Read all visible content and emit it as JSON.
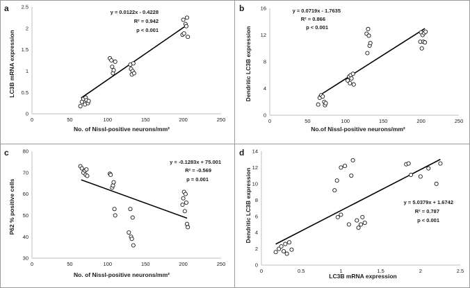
{
  "figure": {
    "panels": [
      {
        "id": "a",
        "letter": "a",
        "chart_data": {
          "type": "scatter",
          "xlabel": "No. of Nissl-positive neurons/mm²",
          "ylabel": "LC3B mRNA expression",
          "xlim": [
            0,
            250
          ],
          "ylim": [
            0,
            2.5
          ],
          "xticks": [
            0,
            50,
            100,
            150,
            200,
            250
          ],
          "yticks": [
            0,
            0.5,
            1,
            1.5,
            2,
            2.5
          ],
          "ytick_labels": [
            "0",
            "0.5",
            "1",
            "1.5",
            "2",
            "2.5"
          ],
          "annotation": [
            "y = 0.0122x - 0.4228",
            "R² = 0.942",
            "p < 0.001"
          ],
          "trendline": {
            "slope": 0.0122,
            "intercept": -0.4228,
            "x_range": [
              65,
              205
            ]
          },
          "points": [
            [
              64,
              0.18
            ],
            [
              66,
              0.28
            ],
            [
              68,
              0.35
            ],
            [
              70,
              0.22
            ],
            [
              71,
              0.38
            ],
            [
              72,
              0.32
            ],
            [
              74,
              0.25
            ],
            [
              75,
              0.3
            ],
            [
              103,
              1.3
            ],
            [
              105,
              1.25
            ],
            [
              106,
              1.1
            ],
            [
              107,
              0.95
            ],
            [
              108,
              1.02
            ],
            [
              110,
              1.22
            ],
            [
              130,
              1.15
            ],
            [
              131,
              1.05
            ],
            [
              132,
              0.92
            ],
            [
              133,
              1.0
            ],
            [
              134,
              1.18
            ],
            [
              135,
              0.95
            ],
            [
              199,
              1.85
            ],
            [
              200,
              2.2
            ],
            [
              201,
              1.88
            ],
            [
              203,
              2.1
            ],
            [
              204,
              2.05
            ],
            [
              205,
              2.25
            ],
            [
              206,
              1.8
            ]
          ]
        }
      },
      {
        "id": "b",
        "letter": "b",
        "chart_data": {
          "type": "scatter",
          "xlabel": "No.of Nissl-positive neurons/mm²",
          "ylabel": "Dendritic LC3B expression",
          "xlim": [
            0,
            250
          ],
          "ylim": [
            0,
            16
          ],
          "xticks": [
            0,
            50,
            100,
            150,
            200,
            250
          ],
          "yticks": [
            0,
            4,
            8,
            12,
            16
          ],
          "ytick_labels": [
            "0",
            "4",
            "8",
            "12",
            "16"
          ],
          "annotation": [
            "y = 0.0719x - 1.7635",
            "R² = 0.866",
            "p < 0.001"
          ],
          "trendline": {
            "slope": 0.0719,
            "intercept": -1.7635,
            "x_range": [
              65,
              205
            ]
          },
          "points": [
            [
              64,
              1.6
            ],
            [
              66,
              2.6
            ],
            [
              68,
              3.0
            ],
            [
              70,
              2.8
            ],
            [
              72,
              2.0
            ],
            [
              73,
              1.5
            ],
            [
              74,
              1.8
            ],
            [
              103,
              5.2
            ],
            [
              105,
              5.8
            ],
            [
              106,
              4.8
            ],
            [
              107,
              6.0
            ],
            [
              108,
              5.5
            ],
            [
              110,
              6.2
            ],
            [
              111,
              4.6
            ],
            [
              128,
              12.2
            ],
            [
              129,
              9.3
            ],
            [
              130,
              12.9
            ],
            [
              131,
              11.9
            ],
            [
              132,
              10.4
            ],
            [
              133,
              10.8
            ],
            [
              199,
              11.0
            ],
            [
              200,
              12.4
            ],
            [
              201,
              10.0
            ],
            [
              202,
              12.0
            ],
            [
              203,
              11.0
            ],
            [
              204,
              12.3
            ],
            [
              205,
              10.9
            ],
            [
              206,
              12.5
            ]
          ]
        }
      },
      {
        "id": "c",
        "letter": "c",
        "chart_data": {
          "type": "scatter",
          "xlabel": "No. of Nissl-positive neurons/mm²",
          "ylabel": "P62 % positive cells",
          "xlim": [
            0,
            250
          ],
          "ylim": [
            30,
            80
          ],
          "xticks": [
            0,
            50,
            100,
            150,
            200,
            250
          ],
          "yticks": [
            30,
            40,
            50,
            60,
            70,
            80
          ],
          "ytick_labels": [
            "30",
            "40",
            "50",
            "60",
            "70",
            "80"
          ],
          "annotation": [
            "y = -0.1283x + 75.001",
            "R² = -0.569",
            "p = 0.001"
          ],
          "trendline": {
            "slope": -0.1283,
            "intercept": 75.001,
            "x_range": [
              65,
              205
            ]
          },
          "points": [
            [
              64,
              73
            ],
            [
              66,
              72
            ],
            [
              68,
              70
            ],
            [
              70,
              71
            ],
            [
              71,
              69
            ],
            [
              72,
              71.5
            ],
            [
              73,
              68.5
            ],
            [
              103,
              69.5
            ],
            [
              104,
              69
            ],
            [
              106,
              63
            ],
            [
              107,
              64
            ],
            [
              108,
              65.5
            ],
            [
              109,
              53
            ],
            [
              110,
              50
            ],
            [
              128,
              42
            ],
            [
              130,
              53
            ],
            [
              131,
              40
            ],
            [
              132,
              39
            ],
            [
              133,
              49
            ],
            [
              134,
              36
            ],
            [
              199,
              55
            ],
            [
              200,
              58
            ],
            [
              201,
              61
            ],
            [
              202,
              52
            ],
            [
              203,
              60
            ],
            [
              204,
              56
            ],
            [
              205,
              46
            ],
            [
              206,
              44.5
            ]
          ]
        }
      },
      {
        "id": "d",
        "letter": "d",
        "chart_data": {
          "type": "scatter",
          "xlabel": "LC3B mRNA expression",
          "ylabel": "Dendritic LC3B expression",
          "xlim": [
            0,
            2.5
          ],
          "ylim": [
            0,
            14
          ],
          "xticks": [
            0,
            0.5,
            1,
            1.5,
            2,
            2.5
          ],
          "xtick_labels": [
            "0",
            "0.5",
            "1",
            "1.5",
            "2",
            "2.5"
          ],
          "yticks": [
            0,
            2,
            4,
            6,
            8,
            10,
            12,
            14
          ],
          "ytick_labels": [
            "0",
            "2",
            "4",
            "6",
            "8",
            "10",
            "12",
            "14"
          ],
          "annotation": [
            "y = 5.0379x + 1.6742",
            "R² = 0.787",
            "p < 0.001"
          ],
          "trendline": {
            "slope": 5.0379,
            "intercept": 1.6742,
            "x_range": [
              0.18,
              2.25
            ]
          },
          "points": [
            [
              0.18,
              1.6
            ],
            [
              0.22,
              2.0
            ],
            [
              0.25,
              2.3
            ],
            [
              0.28,
              1.7
            ],
            [
              0.3,
              2.6
            ],
            [
              0.32,
              1.4
            ],
            [
              0.35,
              2.8
            ],
            [
              0.38,
              1.9
            ],
            [
              0.92,
              9.2
            ],
            [
              0.95,
              10.4
            ],
            [
              0.96,
              5.9
            ],
            [
              1.0,
              6.2
            ],
            [
              1.0,
              12.0
            ],
            [
              1.05,
              12.2
            ],
            [
              1.1,
              5.0
            ],
            [
              1.13,
              11.0
            ],
            [
              1.15,
              12.9
            ],
            [
              1.2,
              5.5
            ],
            [
              1.22,
              4.6
            ],
            [
              1.25,
              5.0
            ],
            [
              1.27,
              5.9
            ],
            [
              1.3,
              5.2
            ],
            [
              1.82,
              12.4
            ],
            [
              1.85,
              12.5
            ],
            [
              1.88,
              11.1
            ],
            [
              2.0,
              10.9
            ],
            [
              2.1,
              11.9
            ],
            [
              2.2,
              10.0
            ],
            [
              2.25,
              12.5
            ]
          ]
        }
      }
    ]
  }
}
